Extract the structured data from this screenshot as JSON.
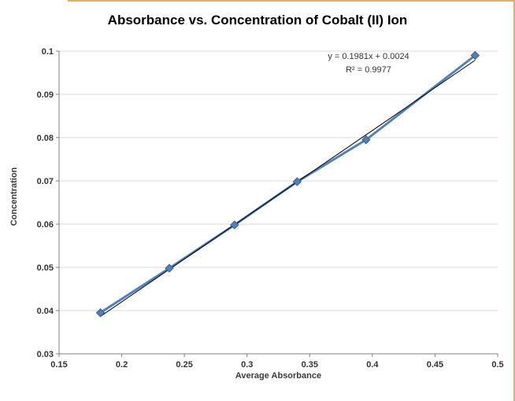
{
  "chart_data": {
    "type": "scatter",
    "title": "Absorbance vs. Concentration of Cobalt (II) Ion",
    "xlabel": "Average Absorbance",
    "ylabel": "Concentration",
    "xlim": [
      0.15,
      0.5
    ],
    "ylim": [
      0.03,
      0.1
    ],
    "xticks": [
      0.15,
      0.2,
      0.25,
      0.3,
      0.35,
      0.4,
      0.45,
      0.5
    ],
    "yticks": [
      0.03,
      0.04,
      0.05,
      0.06,
      0.07,
      0.08,
      0.09,
      0.1
    ],
    "grid": "horizontal",
    "legend": "none",
    "series": [
      {
        "x": [
          0.183,
          0.238,
          0.29,
          0.34,
          0.395,
          0.482
        ],
        "y": [
          0.0395,
          0.0498,
          0.0598,
          0.0698,
          0.0795,
          0.099
        ],
        "color": "#4F81BD",
        "marker": "diamond",
        "marker_edge_color": "#38618F"
      }
    ],
    "trendline": {
      "slope": 0.1981,
      "intercept": 0.0024,
      "color": "#000000",
      "equation_label": "y = 0.1981x + 0.0024",
      "r_squared_label": "R² = 0.9977"
    },
    "colors": {
      "gridline": "#D9D9D9",
      "axis": "#808080",
      "window_edge": "#E0B066"
    }
  }
}
